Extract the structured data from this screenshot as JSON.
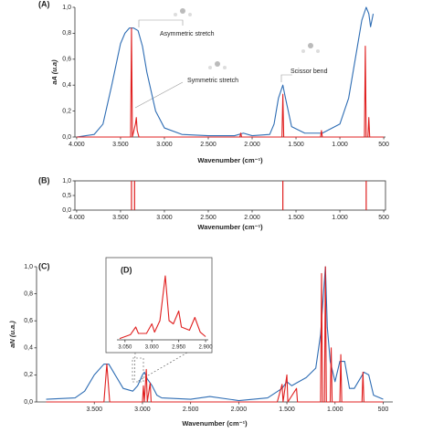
{
  "chart_data": [
    {
      "type": "line",
      "title": "(A)",
      "x_label": "Wavenumber (cm⁻¹)",
      "y_label": "aA (u.a)",
      "xlim": [
        4020,
        480
      ],
      "ylim": [
        0,
        1
      ],
      "xticks": [
        {
          "value": 4000,
          "label": "4.000"
        },
        {
          "value": 3500,
          "label": "3.500"
        },
        {
          "value": 3000,
          "label": "3.000"
        },
        {
          "value": 2500,
          "label": "2.500"
        },
        {
          "value": 2000,
          "label": "2.000"
        },
        {
          "value": 1500,
          "label": "1.500"
        },
        {
          "value": 1000,
          "label": "1.000"
        },
        500
      ],
      "yticks": [
        {
          "value": 0,
          "label": "0,0"
        },
        {
          "value": 0.2,
          "label": "0,2"
        },
        {
          "value": 0.4,
          "label": "0,4"
        },
        {
          "value": 0.6,
          "label": "0,6"
        },
        {
          "value": 0.8,
          "label": "0,8"
        },
        {
          "value": 1,
          "label": "1,0"
        }
      ],
      "annotations": [
        "Asymmetric stretch",
        "Symmetric stretch",
        "Scissor bend"
      ],
      "series": [
        {
          "color": "#2e6db4",
          "x": [
            4000,
            3800,
            3700,
            3600,
            3500,
            3450,
            3400,
            3350,
            3300,
            3250,
            3200,
            3100,
            3000,
            2800,
            2500,
            2200,
            2100,
            2000,
            1800,
            1750,
            1700,
            1650,
            1620,
            1550,
            1400,
            1200,
            1000,
            900,
            800,
            750,
            700,
            670,
            650,
            620
          ],
          "values": [
            0.0,
            0.02,
            0.1,
            0.4,
            0.72,
            0.8,
            0.84,
            0.84,
            0.82,
            0.7,
            0.5,
            0.2,
            0.07,
            0.02,
            0.01,
            0.01,
            0.03,
            0.01,
            0.02,
            0.1,
            0.3,
            0.4,
            0.3,
            0.08,
            0.03,
            0.03,
            0.1,
            0.3,
            0.7,
            0.9,
            1.0,
            0.95,
            0.85,
            0.95
          ]
        },
        {
          "color": "#e02020",
          "x": [
            4000,
            3400,
            3385,
            3375,
            3365,
            3330,
            3320,
            3310,
            3290,
            2140,
            2130,
            2120,
            1660,
            1650,
            1640,
            1220,
            1210,
            1200,
            720,
            710,
            700,
            680,
            670,
            660,
            500
          ],
          "values": [
            0,
            0,
            0,
            0.84,
            0,
            0.1,
            0.15,
            0.05,
            0,
            0,
            0.03,
            0,
            0,
            0.33,
            0,
            0,
            0.05,
            0,
            0,
            0.7,
            0,
            0,
            0.15,
            0,
            0
          ]
        }
      ]
    },
    {
      "type": "bar",
      "title": "(B)",
      "x_label": "Wavenumber (cm⁻¹)",
      "xlim": [
        4020,
        480
      ],
      "ylim": [
        0,
        1
      ],
      "xticks": [
        {
          "value": 4000,
          "label": "4.000"
        },
        {
          "value": 3500,
          "label": "3.500"
        },
        {
          "value": 3000,
          "label": "3.000"
        },
        {
          "value": 2500,
          "label": "2.500"
        },
        {
          "value": 2000,
          "label": "2.000"
        },
        {
          "value": 1500,
          "label": "1.500"
        },
        {
          "value": 1000,
          "label": "1.000"
        },
        500
      ],
      "yticks": [
        {
          "value": 0,
          "label": "0,0"
        },
        {
          "value": 0.5,
          "label": "0,5"
        },
        {
          "value": 1,
          "label": "1,0"
        }
      ],
      "color": "#e02020",
      "x": [
        3375,
        3340,
        1650,
        700
      ],
      "values": [
        1,
        1,
        1,
        1
      ]
    },
    {
      "type": "line",
      "title": "(C)",
      "x_label": "Wavenumber (cm⁻¹)",
      "y_label": "aN (u.a.)",
      "xlim": [
        4100,
        400
      ],
      "ylim": [
        0,
        1
      ],
      "xticks": [
        {
          "value": 3500,
          "label": "3.500"
        },
        {
          "value": 3000,
          "label": "3.000"
        },
        {
          "value": 2500,
          "label": "2.500"
        },
        {
          "value": 2000,
          "label": "2.000"
        },
        {
          "value": 1500,
          "label": "1.500"
        },
        {
          "value": 1000,
          "label": "1.000"
        },
        500
      ],
      "yticks": [
        {
          "value": 0,
          "label": "0,0"
        },
        {
          "value": 0.2,
          "label": "0,2"
        },
        {
          "value": 0.4,
          "label": "0,4"
        },
        {
          "value": 0.6,
          "label": "0,6"
        },
        {
          "value": 0.8,
          "label": "0,8"
        },
        {
          "value": 1,
          "label": "1,0"
        }
      ],
      "series": [
        {
          "color": "#2e6db4",
          "x": [
            4000,
            3700,
            3600,
            3500,
            3400,
            3350,
            3300,
            3200,
            3100,
            3050,
            3000,
            2980,
            2950,
            2900,
            2850,
            2800,
            2500,
            2300,
            2000,
            1700,
            1550,
            1500,
            1450,
            1400,
            1300,
            1200,
            1150,
            1120,
            1100,
            1080,
            1050,
            1000,
            950,
            900,
            850,
            800,
            700,
            650,
            600,
            500
          ],
          "values": [
            0.02,
            0.03,
            0.08,
            0.2,
            0.28,
            0.28,
            0.22,
            0.1,
            0.08,
            0.12,
            0.2,
            0.22,
            0.17,
            0.12,
            0.05,
            0.03,
            0.02,
            0.04,
            0.01,
            0.03,
            0.1,
            0.15,
            0.12,
            0.14,
            0.18,
            0.25,
            0.5,
            0.8,
            1.0,
            0.55,
            0.3,
            0.15,
            0.3,
            0.3,
            0.1,
            0.1,
            0.22,
            0.2,
            0.05,
            0.02
          ]
        },
        {
          "color": "#e02020",
          "x": [
            4000,
            3400,
            3370,
            3340,
            3000,
            2990,
            2980,
            2960,
            2950,
            2920,
            2910,
            1600,
            1550,
            1540,
            1500,
            1490,
            1400,
            1390,
            1150,
            1140,
            1130,
            1110,
            1100,
            1090,
            1050,
            1040,
            1030,
            950,
            940,
            930,
            720,
            710,
            700,
            500
          ],
          "values": [
            0,
            0,
            0.28,
            0,
            0,
            0.12,
            0,
            0.24,
            0,
            0.14,
            0,
            0,
            0.13,
            0,
            0.2,
            0,
            0.1,
            0,
            0,
            0.95,
            0,
            0,
            1.0,
            0,
            0,
            0.4,
            0,
            0,
            0.35,
            0,
            0,
            0.22,
            0,
            0
          ]
        }
      ]
    },
    {
      "type": "line",
      "title": "(D)",
      "xlim": [
        3065,
        2895
      ],
      "ylim": [
        0,
        1
      ],
      "xticks": [
        {
          "value": 3050,
          "label": "3.050"
        },
        {
          "value": 3000,
          "label": "3.000"
        },
        {
          "value": 2950,
          "label": "2.950"
        },
        {
          "value": 2900,
          "label": "2.900"
        }
      ],
      "series": [
        {
          "color": "#e02020",
          "x": [
            3060,
            3040,
            3030,
            3025,
            3010,
            3000,
            2995,
            2985,
            2975,
            2968,
            2960,
            2950,
            2945,
            2930,
            2920,
            2910,
            2900
          ],
          "values": [
            0.02,
            0.08,
            0.2,
            0.1,
            0.1,
            0.25,
            0.12,
            0.3,
            1.0,
            0.3,
            0.25,
            0.45,
            0.2,
            0.15,
            0.35,
            0.12,
            0.05
          ]
        }
      ]
    }
  ]
}
